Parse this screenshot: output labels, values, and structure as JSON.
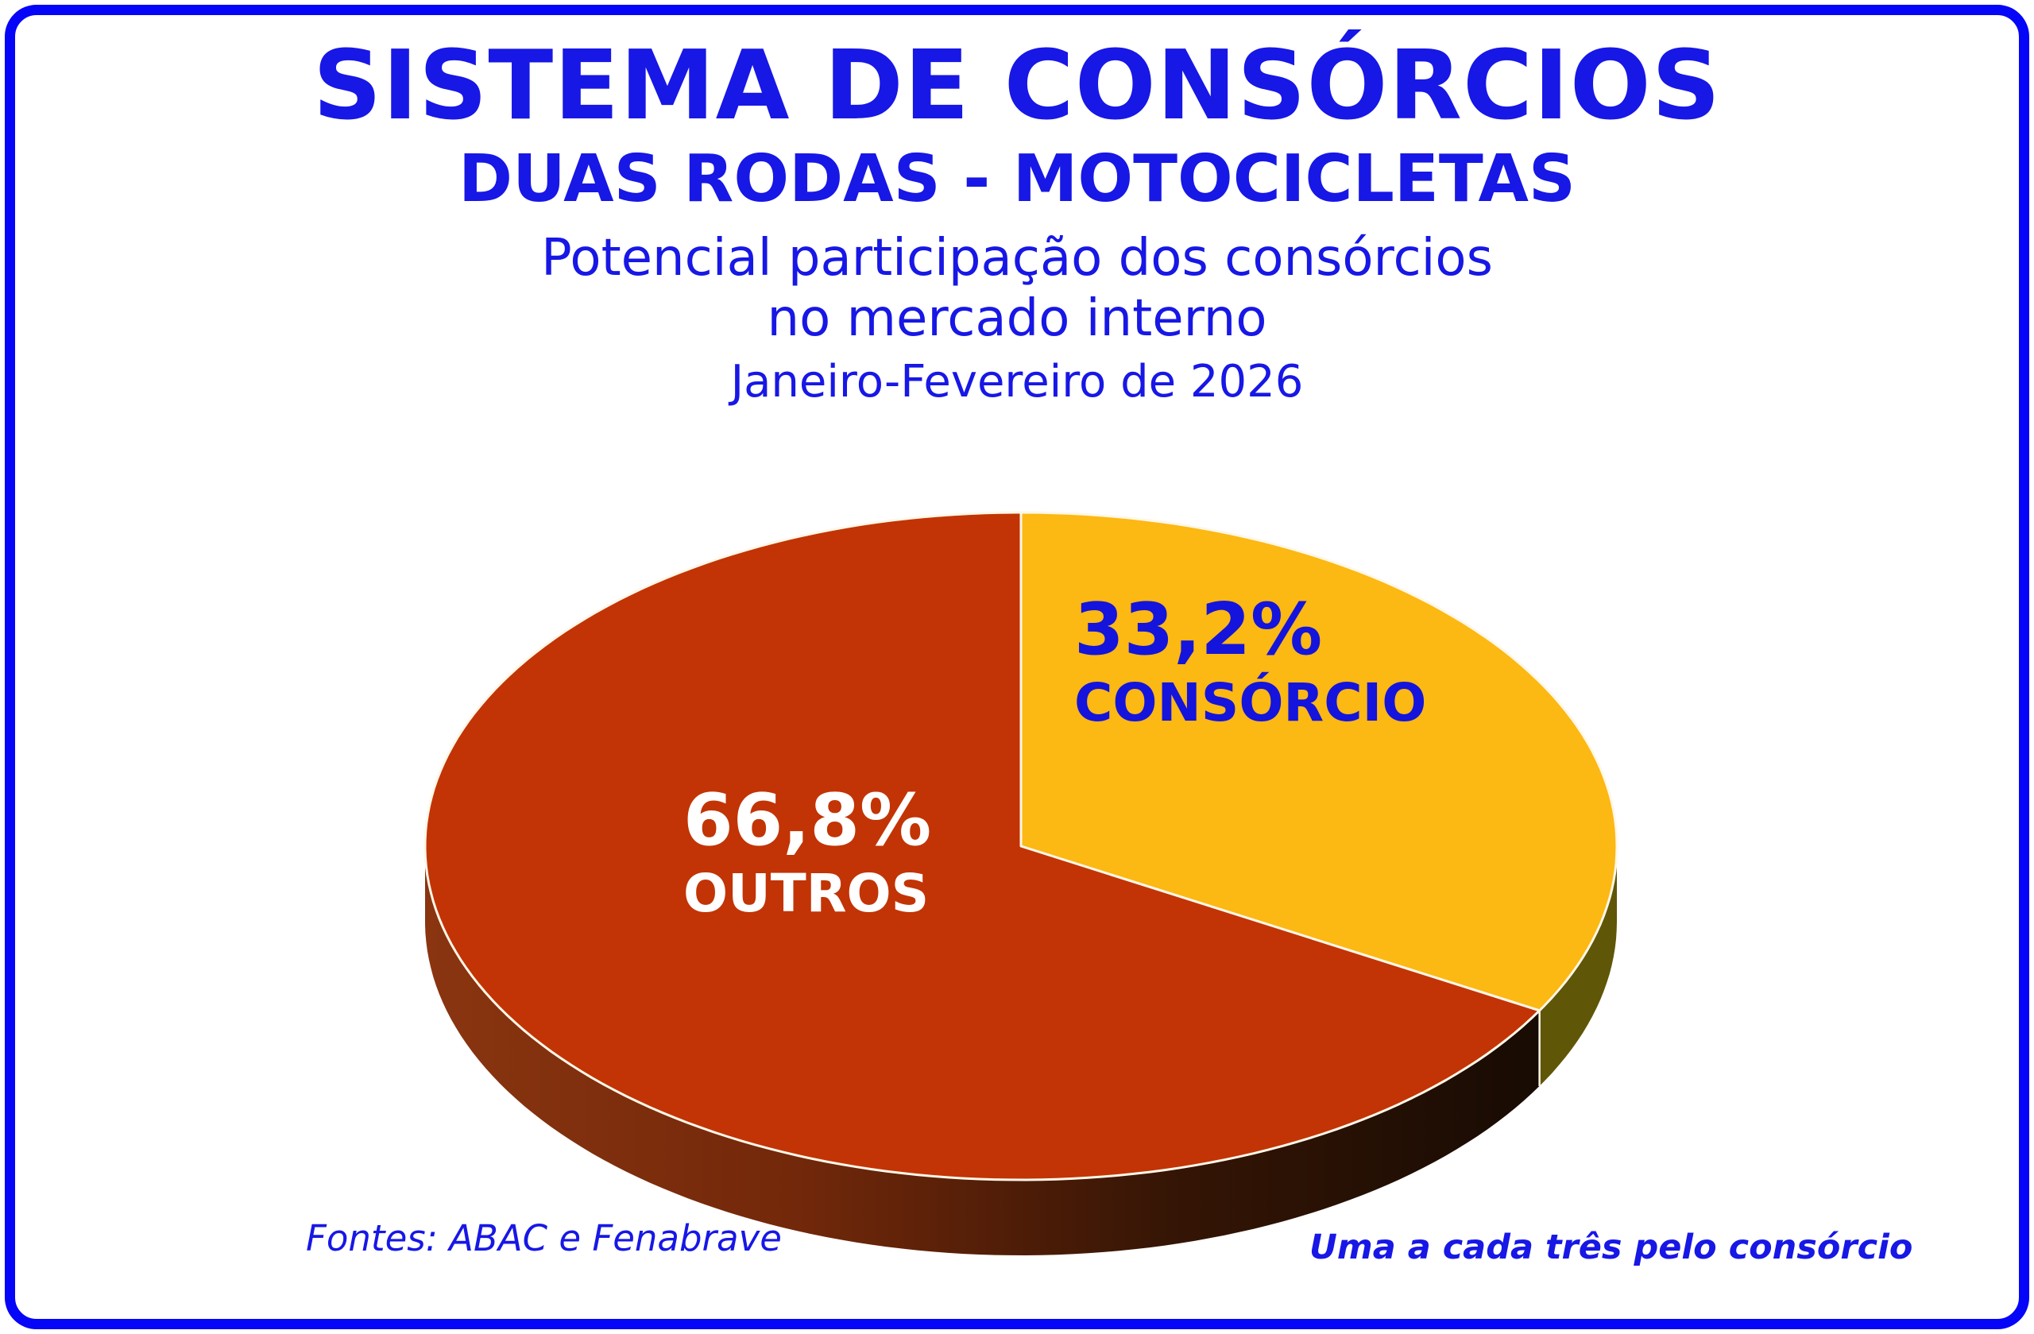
{
  "frame": {
    "border_color": "#0505f8"
  },
  "header": {
    "title": "SISTEMA DE CONSÓRCIOS",
    "subtitle": "DUAS RODAS - MOTOCICLETAS",
    "line3": "Potencial participação dos consórcios",
    "line4": "no mercado interno",
    "period": "Janeiro-Fevereiro de 2026",
    "text_color": "#1717e6"
  },
  "footer": {
    "source": "Fontes: ABAC e Fenabrave",
    "note": "Uma a cada três pelo consórcio",
    "text_color": "#1717e6"
  },
  "chart_data": {
    "type": "pie",
    "style": "3d-exploded-none",
    "title": "Potencial participação dos consórcios no mercado interno",
    "subtitle": "Janeiro-Fevereiro de 2026",
    "units": "%",
    "start_angle_deg": 0,
    "direction": "clockwise",
    "legend_position": "inside-slices",
    "slices": [
      {
        "label": "CONSÓRCIO",
        "value": 33.2,
        "display_value": "33,2%",
        "color": "#fcb813",
        "side_color": "#5f5608",
        "label_color": "#1414dc"
      },
      {
        "label": "OUTROS",
        "value": 66.8,
        "display_value": "66,8%",
        "color": "#c23405",
        "side_gradient": [
          "#8a3510",
          "#72280a",
          "#351505",
          "#170b03"
        ],
        "label_color": "#ffffff"
      }
    ],
    "separator_line_color": "#fff7e8"
  }
}
